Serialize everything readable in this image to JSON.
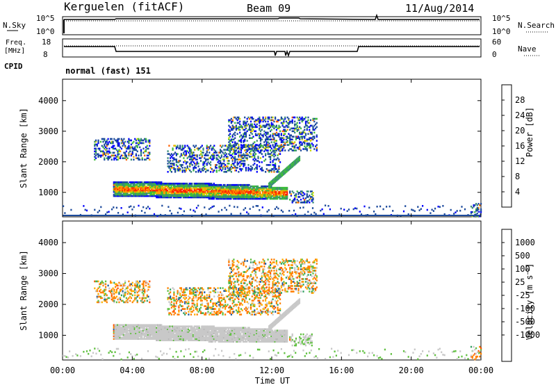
{
  "header": {
    "station": "Kerguelen (fitACF)",
    "beam": "Beam 09",
    "date": "11/Aug/2014"
  },
  "top_panels": {
    "nsky_label": "N.Sky",
    "nsky_ticks": [
      "10^5",
      "10^0"
    ],
    "nsearch_label": "N.Search",
    "nsearch_ticks": [
      "10^5",
      "10^0"
    ],
    "freq_label": "Freq.",
    "freq_unit": "[MHz]",
    "freq_ticks": [
      "18",
      "8"
    ],
    "nave_label": "Nave",
    "nave_ticks": [
      "60",
      "0"
    ],
    "cpid_label": "CPID",
    "cpid_value": "normal (fast) 151"
  },
  "colors": {
    "power_scale": [
      "#0000ff",
      "#1c4a9c",
      "#3a8c78",
      "#3dbb3d",
      "#c9d400",
      "#ffa000",
      "#ff6000",
      "#ff2000"
    ],
    "velocity_scale": [
      "#e00000",
      "#ff5000",
      "#ff9000",
      "#ffc000",
      "#c0c0c0",
      "#c0c0c0",
      "#60c040",
      "#30a060",
      "#1c5aa0",
      "#2030d0"
    ]
  },
  "chart_data": [
    {
      "type": "heatmap",
      "name": "power",
      "ylabel": "Slant Range [km]",
      "yticks": [
        "1000",
        "2000",
        "3000",
        "4000"
      ],
      "ylim": [
        200,
        4700
      ],
      "xlim": [
        0,
        24
      ],
      "colorbar": {
        "label": "Power [dB]",
        "tick_labels": [
          "4",
          "8",
          "12",
          "16",
          "20",
          "24",
          "28"
        ],
        "range": [
          0,
          32
        ]
      },
      "regions": [
        {
          "t0": 2.9,
          "t1": 12.9,
          "r0": 820,
          "r1": 1500,
          "level": "Medium-high",
          "desc": "main band"
        },
        {
          "t0": 1.8,
          "t1": 5.0,
          "r0": 2100,
          "r1": 2800,
          "level": "low"
        },
        {
          "t0": 6.0,
          "t1": 12.5,
          "r0": 1700,
          "r1": 2600,
          "level": "low"
        },
        {
          "t0": 9.5,
          "t1": 14.6,
          "r0": 2400,
          "r1": 3500,
          "level": "mixed"
        },
        {
          "t0": 13.0,
          "t1": 14.4,
          "r0": 700,
          "r1": 1100,
          "level": "medium"
        },
        {
          "t0": 23.4,
          "t1": 24.0,
          "r0": 250,
          "r1": 700,
          "level": "medium"
        }
      ]
    },
    {
      "type": "heatmap",
      "name": "velocity",
      "ylabel": "Slant Range [km]",
      "yticks": [
        "1000",
        "2000",
        "3000",
        "4000"
      ],
      "ylim": [
        200,
        4700
      ],
      "xlim": [
        0,
        24
      ],
      "colorbar": {
        "label": "Velocity [m s^-1]",
        "tick_labels": [
          "1000",
          "500",
          "100",
          "25",
          "-25",
          "-100",
          "-500",
          "-1000"
        ]
      },
      "xticks": [
        "00:00",
        "04:00",
        "08:00",
        "12:00",
        "16:00",
        "20:00",
        "00:00"
      ],
      "xlabel": "Time UT"
    }
  ]
}
